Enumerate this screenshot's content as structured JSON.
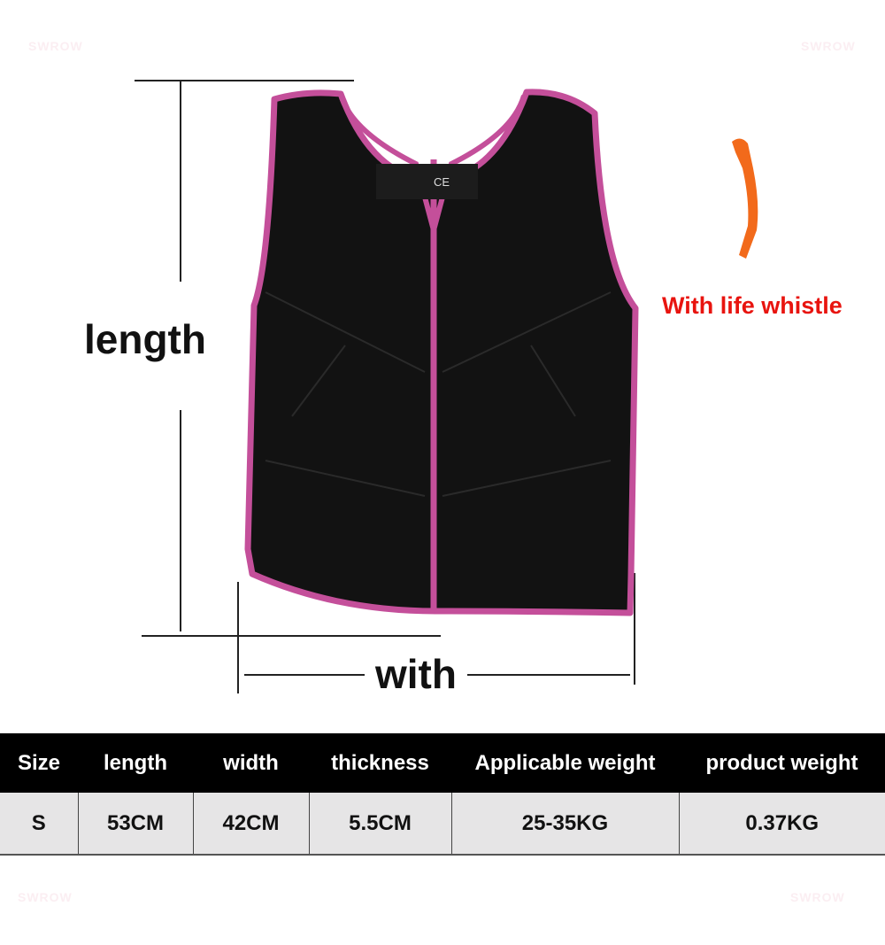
{
  "watermarks": [
    "SWROW",
    "SWROW",
    "SWROW",
    "SWROW"
  ],
  "labels": {
    "length": "length",
    "width": "with",
    "whistle": "With life whistle"
  },
  "vest": {
    "body_color": "#111111",
    "trim_color": "#c44f9a",
    "tag_mark": "CE"
  },
  "whistle": {
    "color": "#f26a1b"
  },
  "table": {
    "headers": [
      "Size",
      "length",
      "width",
      "thickness",
      "Applicable weight",
      "product weight"
    ],
    "rows": [
      [
        "S",
        "53CM",
        "42CM",
        "5.5CM",
        "25-35KG",
        "0.37KG"
      ]
    ]
  }
}
